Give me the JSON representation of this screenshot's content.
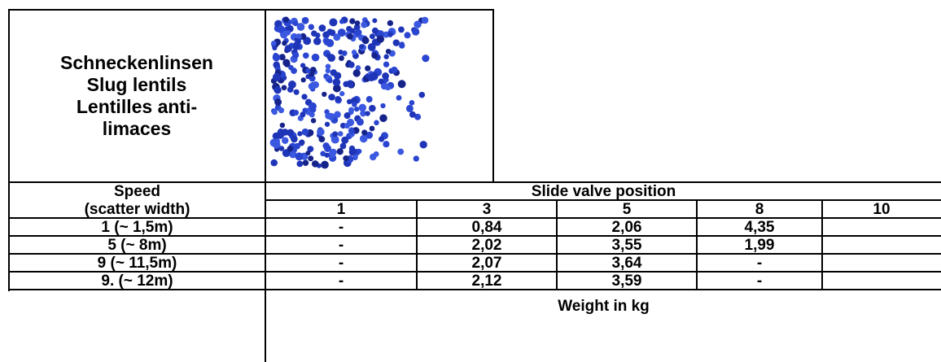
{
  "header": {
    "title": [
      "Schneckenlinsen",
      "Slug lentils",
      "Lentilles anti-limaces"
    ]
  },
  "table": {
    "row_header": [
      "Speed",
      "(scatter width)"
    ],
    "column_group": "Slide valve position",
    "columns": [
      "1",
      "3",
      "5",
      "8",
      "10"
    ],
    "rows": [
      {
        "speed": "1 (~ 1,5m)",
        "values": [
          "-",
          "0,84",
          "2,06",
          "4,35",
          null
        ]
      },
      {
        "speed": "5 (~ 8m)",
        "values": [
          "-",
          "2,02",
          "3,55",
          "1,99",
          null
        ]
      },
      {
        "speed": "9 (~ 11,5m)",
        "values": [
          "-",
          "2,07",
          "3,64",
          "-",
          null
        ]
      },
      {
        "speed": "9. (~ 12m)",
        "values": [
          "-",
          "2,12",
          "3,59",
          "-",
          null
        ]
      }
    ],
    "footer": "Weight in kg"
  }
}
